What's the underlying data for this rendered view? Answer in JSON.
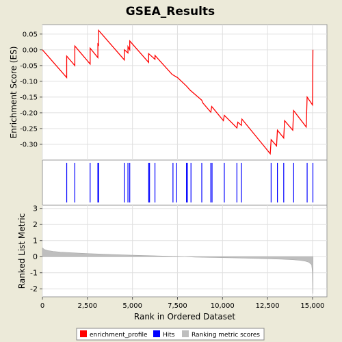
{
  "chart_data": {
    "type": "line",
    "title": "GSEA_Results",
    "x_axis": {
      "label": "Rank in Ordered Dataset",
      "range": [
        0,
        15800
      ],
      "ticks": [
        0,
        2500,
        5000,
        7500,
        10000,
        12500,
        15000
      ],
      "tick_labels": [
        "0",
        "2,500",
        "5,000",
        "7,500",
        "10,000",
        "12,500",
        "15,000"
      ]
    },
    "es_panel": {
      "ylabel": "Enrichment Score (ES)",
      "ylim": [
        -0.35,
        0.08
      ],
      "ticks": [
        0.05,
        0.0,
        -0.05,
        -0.1,
        -0.15,
        -0.2,
        -0.25,
        -0.3
      ],
      "tick_labels": [
        "0.05",
        "0.00",
        "-0.05",
        "-0.10",
        "-0.15",
        "-0.20",
        "-0.25",
        "-0.30"
      ],
      "grid": true,
      "series": {
        "name": "enrichment_profile",
        "color": "#ff0000",
        "x": [
          0,
          1350,
          1350,
          1800,
          1800,
          2650,
          2650,
          3080,
          3080,
          3120,
          3120,
          4550,
          4550,
          4750,
          4750,
          4850,
          4850,
          5900,
          5900,
          6250,
          6250,
          7200,
          7500,
          8000,
          8200,
          8850,
          8900,
          9350,
          9400,
          10050,
          10100,
          10800,
          10850,
          11050,
          11080,
          12650,
          12700,
          13000,
          13050,
          13400,
          13450,
          13900,
          13950,
          14650,
          14700,
          15000,
          15020
        ],
        "y": [
          0.0,
          -0.088,
          -0.02,
          -0.05,
          0.012,
          -0.045,
          0.005,
          -0.025,
          0.018,
          0.015,
          0.062,
          -0.032,
          0.0,
          -0.01,
          0.01,
          0.0,
          0.028,
          -0.04,
          -0.012,
          -0.03,
          -0.018,
          -0.078,
          -0.088,
          -0.115,
          -0.128,
          -0.16,
          -0.168,
          -0.198,
          -0.18,
          -0.225,
          -0.208,
          -0.248,
          -0.23,
          -0.24,
          -0.22,
          -0.33,
          -0.285,
          -0.305,
          -0.255,
          -0.28,
          -0.225,
          -0.255,
          -0.193,
          -0.245,
          -0.15,
          -0.175,
          0.0
        ]
      }
    },
    "hits_panel": {
      "name": "Hits",
      "color": "#0000ff",
      "positions": [
        1350,
        1800,
        2650,
        3080,
        3120,
        4550,
        4750,
        4850,
        5900,
        5950,
        6250,
        7250,
        7450,
        8000,
        8050,
        8250,
        8850,
        9350,
        9420,
        10100,
        10800,
        11050,
        12700,
        13050,
        13400,
        13950,
        14700,
        15020
      ]
    },
    "metric_panel": {
      "name": "Ranking metric scores",
      "ylabel": "Ranked List Metric",
      "ylim": [
        -2.5,
        3.2
      ],
      "ticks": [
        3,
        2,
        1,
        0,
        -1,
        -2
      ],
      "tick_labels": [
        "3",
        "2",
        "1",
        "0",
        "-1",
        "-2"
      ],
      "grid": true,
      "color": "#bebebe",
      "x": [
        0,
        100,
        300,
        600,
        1000,
        2000,
        3000,
        4000,
        5000,
        6000,
        7000,
        7900,
        8500,
        9500,
        10500,
        11500,
        12500,
        13300,
        13900,
        14300,
        14600,
        14800,
        14950,
        15000,
        15030
      ],
      "values": [
        0.55,
        0.45,
        0.38,
        0.33,
        0.28,
        0.22,
        0.17,
        0.13,
        0.09,
        0.06,
        0.03,
        0.0,
        -0.03,
        -0.05,
        -0.07,
        -0.1,
        -0.13,
        -0.16,
        -0.19,
        -0.23,
        -0.28,
        -0.35,
        -0.5,
        -1.0,
        -2.3
      ]
    },
    "legend": {
      "placement": "bottom",
      "entries": [
        {
          "label": "enrichment_profile",
          "color": "#ff0000"
        },
        {
          "label": "Hits",
          "color": "#0000ff"
        },
        {
          "label": "Ranking metric scores",
          "color": "#bebebe"
        }
      ]
    }
  }
}
